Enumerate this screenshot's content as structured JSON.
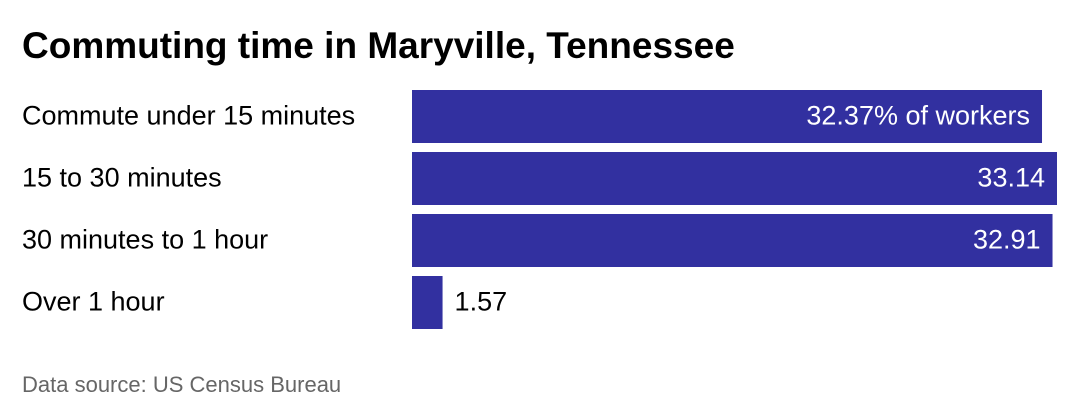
{
  "chart_data": {
    "type": "bar",
    "orientation": "horizontal",
    "title": "Commuting time in Maryville, Tennessee",
    "categories": [
      "Commute under 15 minutes",
      "15 to 30 minutes",
      "30 minutes to 1 hour",
      "Over 1 hour"
    ],
    "values": [
      32.37,
      33.14,
      32.91,
      1.57
    ],
    "value_labels": [
      "32.37% of workers",
      "33.14",
      "32.91",
      "1.57"
    ],
    "color": "#3230a0",
    "source": "Data source: US Census Bureau"
  }
}
